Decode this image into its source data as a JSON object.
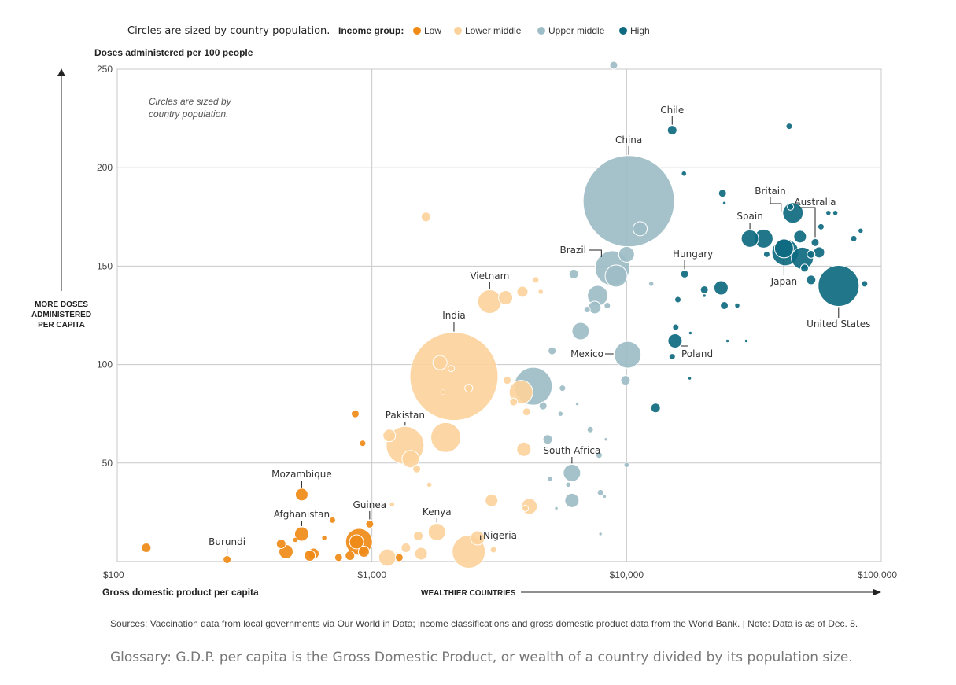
{
  "chart_data": {
    "type": "scatter",
    "note": "Circles are sized by country population.",
    "inner_note": "Circles are sized by country population.",
    "legend_title": "Income group:",
    "legend_position": "top",
    "legend": [
      {
        "name": "Low",
        "color": "#ef8a17"
      },
      {
        "name": "Lower middle",
        "color": "#fcd29c"
      },
      {
        "name": "Upper middle",
        "color": "#9dbdc7"
      },
      {
        "name": "High",
        "color": "#0e6a80"
      }
    ],
    "ylabel": "Doses administered per 100 people",
    "ylabel_side": "MORE DOSES ADMINISTERED PER CAPITA",
    "xlabel": "Gross domestic product per capita",
    "xlabel_side": "WEALTHIER COUNTRIES",
    "x_scale": "log",
    "xlim": [
      100,
      100000
    ],
    "ylim": [
      0,
      250
    ],
    "x_ticks": [
      {
        "value": 100,
        "label": "$100"
      },
      {
        "value": 1000,
        "label": "$1,000"
      },
      {
        "value": 10000,
        "label": "$10,000"
      },
      {
        "value": 100000,
        "label": "$100,000"
      }
    ],
    "y_ticks": [
      {
        "value": 50,
        "label": "50"
      },
      {
        "value": 100,
        "label": "100"
      },
      {
        "value": 150,
        "label": "150"
      },
      {
        "value": 200,
        "label": "200"
      },
      {
        "value": 250,
        "label": "250"
      }
    ],
    "grid": true,
    "points": [
      {
        "x": 10200,
        "y": 183,
        "g": "Upper middle",
        "s": 58,
        "label": "China"
      },
      {
        "x": 2100,
        "y": 94,
        "g": "Lower middle",
        "s": 56,
        "label": "India"
      },
      {
        "x": 68000,
        "y": 140,
        "g": "High",
        "s": 26,
        "label": "United States"
      },
      {
        "x": 4300,
        "y": 89,
        "g": "Upper middle",
        "s": 24
      },
      {
        "x": 1350,
        "y": 59,
        "g": "Lower middle",
        "s": 24,
        "label": "Pakistan"
      },
      {
        "x": 2400,
        "y": 5,
        "g": "Lower middle",
        "s": 21,
        "label": "Nigeria"
      },
      {
        "x": 8800,
        "y": 149,
        "g": "Upper middle",
        "s": 22,
        "label": "Brazil"
      },
      {
        "x": 1950,
        "y": 63,
        "g": "Lower middle",
        "s": 19
      },
      {
        "x": 10100,
        "y": 105,
        "g": "Upper middle",
        "s": 17,
        "label": "Mexico"
      },
      {
        "x": 890,
        "y": 10,
        "g": "Low",
        "s": 17
      },
      {
        "x": 3850,
        "y": 86,
        "g": "Lower middle",
        "s": 15
      },
      {
        "x": 42000,
        "y": 157,
        "g": "High",
        "s": 17
      },
      {
        "x": 2900,
        "y": 132,
        "g": "Lower middle",
        "s": 15,
        "label": "Vietnam"
      },
      {
        "x": 9100,
        "y": 145,
        "g": "Upper middle",
        "s": 14
      },
      {
        "x": 45000,
        "y": 177,
        "g": "High",
        "s": 13,
        "label": "Britain"
      },
      {
        "x": 49000,
        "y": 154,
        "g": "High",
        "s": 14
      },
      {
        "x": 41500,
        "y": 159,
        "g": "High",
        "s": 12,
        "label": "Japan"
      },
      {
        "x": 7700,
        "y": 135,
        "g": "Upper middle",
        "s": 13
      },
      {
        "x": 6600,
        "y": 117,
        "g": "Upper middle",
        "s": 11
      },
      {
        "x": 1420,
        "y": 52,
        "g": "Lower middle",
        "s": 11
      },
      {
        "x": 1800,
        "y": 15,
        "g": "Lower middle",
        "s": 11,
        "label": "Kenya"
      },
      {
        "x": 30500,
        "y": 164,
        "g": "High",
        "s": 11,
        "label": "Spain"
      },
      {
        "x": 34500,
        "y": 164,
        "g": "High",
        "s": 12
      },
      {
        "x": 6100,
        "y": 45,
        "g": "Upper middle",
        "s": 11,
        "label": "South Africa"
      },
      {
        "x": 4150,
        "y": 28,
        "g": "Lower middle",
        "s": 10
      },
      {
        "x": 6100,
        "y": 31,
        "g": "Upper middle",
        "s": 9
      },
      {
        "x": 1150,
        "y": 2,
        "g": "Lower middle",
        "s": 11
      },
      {
        "x": 3350,
        "y": 134,
        "g": "Lower middle",
        "s": 9
      },
      {
        "x": 11300,
        "y": 169,
        "g": "Upper middle",
        "s": 9
      },
      {
        "x": 10000,
        "y": 156,
        "g": "Upper middle",
        "s": 10
      },
      {
        "x": 23500,
        "y": 139,
        "g": "High",
        "s": 9
      },
      {
        "x": 15500,
        "y": 112,
        "g": "High",
        "s": 9,
        "label": "Poland"
      },
      {
        "x": 870,
        "y": 10,
        "g": "Low",
        "s": 9
      },
      {
        "x": 2600,
        "y": 12,
        "g": "Lower middle",
        "s": 9
      },
      {
        "x": 3950,
        "y": 57,
        "g": "Lower middle",
        "s": 9
      },
      {
        "x": 2950,
        "y": 31,
        "g": "Lower middle",
        "s": 8
      },
      {
        "x": 1560,
        "y": 4,
        "g": "Lower middle",
        "s": 8
      },
      {
        "x": 1170,
        "y": 64,
        "g": "Lower middle",
        "s": 8
      },
      {
        "x": 1520,
        "y": 13,
        "g": "Lower middle",
        "s": 6
      },
      {
        "x": 1850,
        "y": 101,
        "g": "Lower middle",
        "s": 9
      },
      {
        "x": 7500,
        "y": 129,
        "g": "Upper middle",
        "s": 8
      },
      {
        "x": 530,
        "y": 34,
        "g": "Low",
        "s": 8,
        "label": "Mozambique"
      },
      {
        "x": 530,
        "y": 14,
        "g": "Low",
        "s": 9,
        "label": "Afghanistan"
      },
      {
        "x": 460,
        "y": 5,
        "g": "Low",
        "s": 9
      },
      {
        "x": 590,
        "y": 4,
        "g": "Low",
        "s": 7
      },
      {
        "x": 570,
        "y": 3,
        "g": "Low",
        "s": 7
      },
      {
        "x": 440,
        "y": 9,
        "g": "Low",
        "s": 6
      },
      {
        "x": 820,
        "y": 3,
        "g": "Low",
        "s": 6
      },
      {
        "x": 930,
        "y": 5,
        "g": "Low",
        "s": 7
      },
      {
        "x": 740,
        "y": 2,
        "g": "Low",
        "s": 5
      },
      {
        "x": 130,
        "y": 7,
        "g": "Low",
        "s": 6
      },
      {
        "x": 270,
        "y": 1,
        "g": "Low",
        "s": 5,
        "label": "Burundi"
      },
      {
        "x": 980,
        "y": 19,
        "g": "Low",
        "s": 5,
        "label": "Guinea"
      },
      {
        "x": 860,
        "y": 75,
        "g": "Low",
        "s": 5
      },
      {
        "x": 920,
        "y": 60,
        "g": "Low",
        "s": 4
      },
      {
        "x": 700,
        "y": 21,
        "g": "Low",
        "s": 4
      },
      {
        "x": 1280,
        "y": 2,
        "g": "Low",
        "s": 5
      },
      {
        "x": 650,
        "y": 12,
        "g": "Low",
        "s": 3
      },
      {
        "x": 500,
        "y": 11,
        "g": "Low",
        "s": 3
      },
      {
        "x": 1630,
        "y": 175,
        "g": "Lower middle",
        "s": 6
      },
      {
        "x": 3900,
        "y": 137,
        "g": "Lower middle",
        "s": 7
      },
      {
        "x": 4400,
        "y": 143,
        "g": "Lower middle",
        "s": 4
      },
      {
        "x": 4600,
        "y": 137,
        "g": "Lower middle",
        "s": 3
      },
      {
        "x": 3600,
        "y": 81,
        "g": "Lower middle",
        "s": 5
      },
      {
        "x": 4050,
        "y": 76,
        "g": "Lower middle",
        "s": 5
      },
      {
        "x": 3400,
        "y": 92,
        "g": "Lower middle",
        "s": 5
      },
      {
        "x": 2050,
        "y": 98,
        "g": "Lower middle",
        "s": 4
      },
      {
        "x": 1900,
        "y": 86,
        "g": "Lower middle",
        "s": 3
      },
      {
        "x": 1500,
        "y": 47,
        "g": "Lower middle",
        "s": 5
      },
      {
        "x": 1680,
        "y": 39,
        "g": "Lower middle",
        "s": 3
      },
      {
        "x": 1360,
        "y": 7,
        "g": "Lower middle",
        "s": 6
      },
      {
        "x": 1200,
        "y": 29,
        "g": "Lower middle",
        "s": 3
      },
      {
        "x": 3000,
        "y": 6,
        "g": "Lower middle",
        "s": 4
      },
      {
        "x": 2400,
        "y": 88,
        "g": "Lower middle",
        "s": 5
      },
      {
        "x": 4000,
        "y": 27,
        "g": "Lower middle",
        "s": 4
      },
      {
        "x": 6200,
        "y": 146,
        "g": "Upper middle",
        "s": 6
      },
      {
        "x": 8900,
        "y": 252,
        "g": "Upper middle",
        "s": 5
      },
      {
        "x": 5100,
        "y": 107,
        "g": "Upper middle",
        "s": 5
      },
      {
        "x": 9900,
        "y": 92,
        "g": "Upper middle",
        "s": 6
      },
      {
        "x": 4900,
        "y": 62,
        "g": "Upper middle",
        "s": 6
      },
      {
        "x": 4700,
        "y": 79,
        "g": "Upper middle",
        "s": 5
      },
      {
        "x": 5600,
        "y": 88,
        "g": "Upper middle",
        "s": 4
      },
      {
        "x": 7200,
        "y": 67,
        "g": "Upper middle",
        "s": 4
      },
      {
        "x": 7800,
        "y": 54,
        "g": "Upper middle",
        "s": 4
      },
      {
        "x": 7900,
        "y": 35,
        "g": "Upper middle",
        "s": 4
      },
      {
        "x": 8400,
        "y": 130,
        "g": "Upper middle",
        "s": 4
      },
      {
        "x": 7000,
        "y": 128,
        "g": "Upper middle",
        "s": 4
      },
      {
        "x": 12500,
        "y": 141,
        "g": "Upper middle",
        "s": 3
      },
      {
        "x": 10000,
        "y": 49,
        "g": "Upper middle",
        "s": 3
      },
      {
        "x": 5500,
        "y": 75,
        "g": "Upper middle",
        "s": 3
      },
      {
        "x": 6400,
        "y": 80,
        "g": "Upper middle",
        "s": 2
      },
      {
        "x": 5000,
        "y": 42,
        "g": "Upper middle",
        "s": 3
      },
      {
        "x": 5900,
        "y": 39,
        "g": "Upper middle",
        "s": 3
      },
      {
        "x": 5300,
        "y": 27,
        "g": "Upper middle",
        "s": 2
      },
      {
        "x": 8200,
        "y": 33,
        "g": "Upper middle",
        "s": 2
      },
      {
        "x": 7900,
        "y": 14,
        "g": "Upper middle",
        "s": 2
      },
      {
        "x": 8300,
        "y": 62,
        "g": "Upper middle",
        "s": 2
      },
      {
        "x": 15100,
        "y": 219,
        "g": "High",
        "s": 6,
        "label": "Chile"
      },
      {
        "x": 43500,
        "y": 221,
        "g": "High",
        "s": 4
      },
      {
        "x": 16800,
        "y": 197,
        "g": "High",
        "s": 3
      },
      {
        "x": 23800,
        "y": 187,
        "g": "High",
        "s": 5
      },
      {
        "x": 24200,
        "y": 182,
        "g": "High",
        "s": 2
      },
      {
        "x": 16900,
        "y": 146,
        "g": "High",
        "s": 5,
        "label": "Hungary"
      },
      {
        "x": 15900,
        "y": 133,
        "g": "High",
        "s": 4
      },
      {
        "x": 20200,
        "y": 138,
        "g": "High",
        "s": 5
      },
      {
        "x": 20200,
        "y": 135,
        "g": "High",
        "s": 2
      },
      {
        "x": 24200,
        "y": 130,
        "g": "High",
        "s": 5
      },
      {
        "x": 27200,
        "y": 130,
        "g": "High",
        "s": 3
      },
      {
        "x": 15600,
        "y": 119,
        "g": "High",
        "s": 4
      },
      {
        "x": 17800,
        "y": 116,
        "g": "High",
        "s": 2
      },
      {
        "x": 15100,
        "y": 104,
        "g": "High",
        "s": 4
      },
      {
        "x": 24900,
        "y": 112,
        "g": "High",
        "s": 2
      },
      {
        "x": 29500,
        "y": 112,
        "g": "High",
        "s": 2
      },
      {
        "x": 17700,
        "y": 93,
        "g": "High",
        "s": 2
      },
      {
        "x": 13000,
        "y": 78,
        "g": "High",
        "s": 6
      },
      {
        "x": 48000,
        "y": 165,
        "g": "High",
        "s": 8
      },
      {
        "x": 55000,
        "y": 162,
        "g": "High",
        "s": 5,
        "label": "Australia"
      },
      {
        "x": 57000,
        "y": 157,
        "g": "High",
        "s": 7
      },
      {
        "x": 53000,
        "y": 156,
        "g": "High",
        "s": 5
      },
      {
        "x": 53000,
        "y": 143,
        "g": "High",
        "s": 6
      },
      {
        "x": 50000,
        "y": 149,
        "g": "High",
        "s": 5
      },
      {
        "x": 35500,
        "y": 156,
        "g": "High",
        "s": 4
      },
      {
        "x": 58000,
        "y": 170,
        "g": "High",
        "s": 4
      },
      {
        "x": 62000,
        "y": 177,
        "g": "High",
        "s": 3
      },
      {
        "x": 66000,
        "y": 177,
        "g": "High",
        "s": 3
      },
      {
        "x": 78000,
        "y": 164,
        "g": "High",
        "s": 4
      },
      {
        "x": 83000,
        "y": 168,
        "g": "High",
        "s": 3
      },
      {
        "x": 86000,
        "y": 141,
        "g": "High",
        "s": 4
      },
      {
        "x": 44000,
        "y": 180,
        "g": "High",
        "s": 4
      }
    ],
    "sources": "Sources: Vaccination data from local governments via Our World in Data; income classifications and gross domestic product data from the World Bank. | Note: Data is as of Dec. 8."
  },
  "glossary": "Glossary: G.D.P. per capita is the Gross Domestic Product, or wealth of a country divided by its population size."
}
